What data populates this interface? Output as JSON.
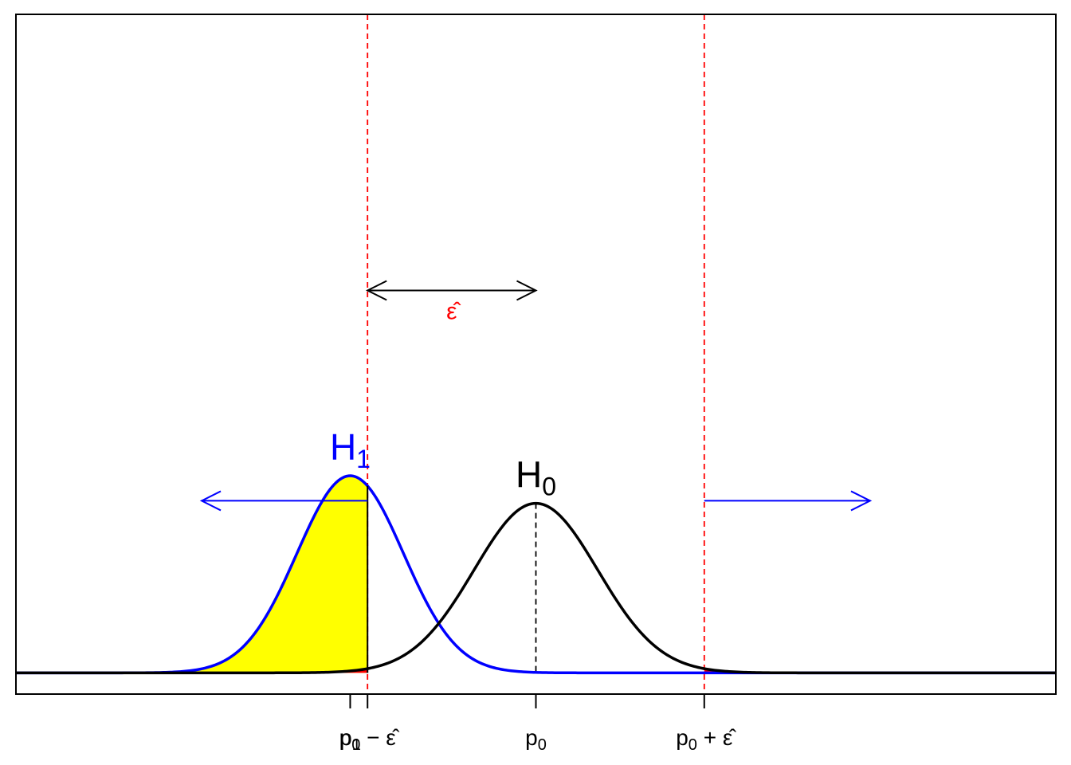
{
  "chart_data": {
    "type": "area",
    "title": "",
    "xlabel": "",
    "ylabel": "",
    "xlim": [
      -4.2,
      4.2
    ],
    "ylim": [
      -0.1,
      3.1
    ],
    "grid": false,
    "series": [
      {
        "name": "H1",
        "label_main": "H",
        "label_sub": "1",
        "mean": -1.5,
        "sd": 0.43,
        "color": "#0000ff",
        "label_color": "#0000ff"
      },
      {
        "name": "H0",
        "label_main": "H",
        "label_sub": "0",
        "mean": 0.0,
        "sd": 0.5,
        "color": "#000000",
        "label_color": "#000000"
      }
    ],
    "critical_values": {
      "lower": -1.36,
      "upper": 1.36
    },
    "shading": {
      "power_region": {
        "under": "H1",
        "from": -4.2,
        "to": -1.36,
        "color": "#ffff00"
      },
      "alpha_regions": [
        {
          "under": "H0",
          "from": -4.2,
          "to": -1.36,
          "color": "#ff0000"
        },
        {
          "under": "H0",
          "from": 1.36,
          "to": 4.2,
          "color": "#ff0000"
        }
      ]
    },
    "rejection_arrows": [
      {
        "from": -1.36,
        "to": -2.7,
        "y": 0.81,
        "color": "#0000ff"
      },
      {
        "from": 1.36,
        "to": 2.7,
        "y": 0.81,
        "color": "#0000ff"
      }
    ],
    "epsilon_arrow": {
      "from": -1.36,
      "to": 0.0,
      "y": 1.8,
      "label": "ε̂",
      "label_color": "#ff0000"
    },
    "ticks": [
      {
        "x": -1.5,
        "main": "p",
        "sub": "1",
        "suffix": ""
      },
      {
        "x": -1.36,
        "main": "p",
        "sub": "0",
        "suffix": " − ε̂"
      },
      {
        "x": 0.0,
        "main": "p",
        "sub": "0",
        "suffix": ""
      },
      {
        "x": 1.36,
        "main": "p",
        "sub": "0",
        "suffix": " + ε̂"
      }
    ]
  }
}
